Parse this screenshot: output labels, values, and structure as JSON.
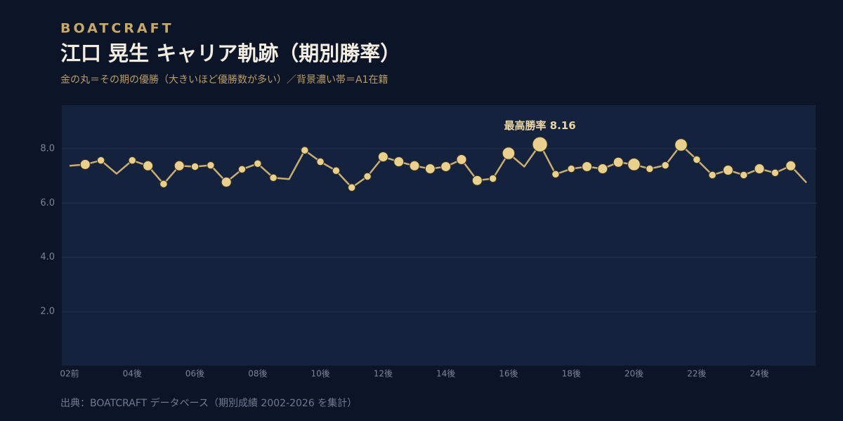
{
  "brand": "BOATCRAFT",
  "chart_data": {
    "type": "line",
    "title": "江口 晃生  キャリア軌跡（期別勝率）",
    "subtitle": "金の丸＝その期の優勝（大きいほど優勝数が多い）／背景濃い帯＝A1在籍",
    "annotation": "最高勝率 8.16",
    "source": "出典：BOATCRAFT データベース（期別成績 2002-2026 を集計）",
    "categories": [
      "02前",
      null,
      null,
      null,
      "04後",
      null,
      null,
      null,
      "06後",
      null,
      null,
      null,
      "08後",
      null,
      null,
      null,
      "10後",
      null,
      null,
      null,
      "12後",
      null,
      null,
      null,
      "14後",
      null,
      null,
      null,
      "16後",
      null,
      null,
      null,
      "18後",
      null,
      null,
      null,
      "20後",
      null,
      null,
      null,
      "22後",
      null,
      null,
      null,
      "24後",
      null,
      null,
      null
    ],
    "series": [
      {
        "color": "#e9d08f",
        "values": [
          7.37,
          7.42,
          7.57,
          7.08,
          7.57,
          7.37,
          6.7,
          7.37,
          7.34,
          7.39,
          6.77,
          7.24,
          7.45,
          6.93,
          6.88,
          7.94,
          7.52,
          7.19,
          6.57,
          6.98,
          7.7,
          7.52,
          7.37,
          7.26,
          7.34,
          7.6,
          6.83,
          6.9,
          7.83,
          7.34,
          8.16,
          7.06,
          7.26,
          7.34,
          7.26,
          7.5,
          7.42,
          7.26,
          7.39,
          8.14,
          7.6,
          7.03,
          7.21,
          7.03,
          7.26,
          7.11,
          7.37,
          6.75
        ],
        "wins": [
          0,
          2,
          1,
          0,
          1,
          2,
          1,
          2,
          1,
          1,
          2,
          1,
          1,
          1,
          0,
          1,
          1,
          1,
          1,
          1,
          2,
          2,
          2,
          2,
          2,
          2,
          2,
          1,
          3,
          0,
          4,
          1,
          1,
          2,
          2,
          2,
          3,
          1,
          1,
          3,
          1,
          1,
          2,
          1,
          2,
          1,
          2,
          0
        ]
      }
    ],
    "ylim": [
      0,
      9.6
    ],
    "yticks": [
      {
        "value": 2,
        "label": "2.0"
      },
      {
        "value": 4,
        "label": "4.0"
      },
      {
        "value": 6,
        "label": "6.0"
      },
      {
        "value": 8,
        "label": "8.0"
      }
    ],
    "grid": true
  }
}
